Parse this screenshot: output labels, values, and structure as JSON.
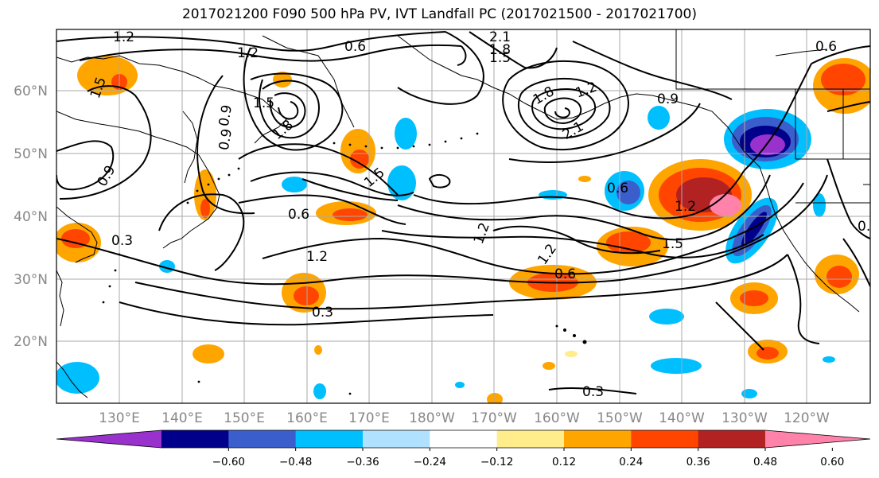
{
  "title": "2017021200 F090 500 hPa PV, IVT Landfall PC (2017021500 - 2017021700)",
  "lat_labels": [
    "60°N",
    "50°N",
    "40°N",
    "30°N",
    "20°N"
  ],
  "lon_labels": [
    "130°E",
    "140°E",
    "150°E",
    "160°E",
    "170°E",
    "180°W",
    "170°W",
    "160°W",
    "150°W",
    "140°W",
    "130°W",
    "120°W"
  ],
  "contour_labels": [
    "1.2",
    "1.2",
    "0.6",
    "2.1",
    "1.8",
    "1.5",
    "1.5",
    "0.9",
    "0.9",
    "0.9",
    "1.5",
    "1.8",
    "1.5",
    "1.8",
    "2.1",
    "1.2",
    "0.9",
    "0.3",
    "0.6",
    "0.6",
    "1.2",
    "1.2",
    "1.2",
    "1.2",
    "1.5",
    "0.6",
    "0.3",
    "0.3",
    "0.6",
    "1.5",
    "0.3"
  ],
  "colorbar": {
    "colors": [
      "#9932cc",
      "#00008b",
      "#3a5fcd",
      "#00bfff",
      "#b0e2ff",
      "#ffffff",
      "#ffec8b",
      "#ffa500",
      "#ff4500",
      "#b22222",
      "#ff82ab"
    ],
    "tick_labels": [
      "−0.60",
      "−0.48",
      "−0.36",
      "−0.24",
      "−0.12",
      "0.12",
      "0.24",
      "0.36",
      "0.48",
      "0.60"
    ]
  }
}
